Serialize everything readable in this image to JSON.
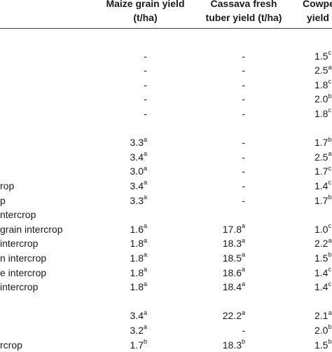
{
  "headers": {
    "maize": [
      "Maize grain yield",
      "(t/ha)"
    ],
    "cassava": [
      "Cassava fresh",
      "tuber yield (t/ha)"
    ],
    "cowpea": [
      "Cowpea",
      "yield ("
    ]
  },
  "rows": [
    {
      "label": "",
      "maize": "",
      "maize_sup": "",
      "cassava": "",
      "cassava_sup": "",
      "cowpea": "",
      "cowpea_sup": ""
    },
    {
      "label": "",
      "maize": "-",
      "maize_sup": "",
      "cassava": "-",
      "cassava_sup": "",
      "cowpea": "1.5",
      "cowpea_sup": "c"
    },
    {
      "label": "",
      "maize": "-",
      "maize_sup": "",
      "cassava": "-",
      "cassava_sup": "",
      "cowpea": "2.5",
      "cowpea_sup": "a"
    },
    {
      "label": "",
      "maize": "-",
      "maize_sup": "",
      "cassava": "-",
      "cassava_sup": "",
      "cowpea": "1.8",
      "cowpea_sup": "c"
    },
    {
      "label": "",
      "maize": "-",
      "maize_sup": "",
      "cassava": "-",
      "cassava_sup": "",
      "cowpea": "2.0",
      "cowpea_sup": "b"
    },
    {
      "label": "",
      "maize": "-",
      "maize_sup": "",
      "cassava": "-",
      "cassava_sup": "",
      "cowpea": "1.8",
      "cowpea_sup": "c"
    },
    {
      "label": "",
      "maize": "",
      "maize_sup": "",
      "cassava": "",
      "cassava_sup": "",
      "cowpea": "",
      "cowpea_sup": ""
    },
    {
      "label": "",
      "maize": "3.3",
      "maize_sup": "a",
      "cassava": "-",
      "cassava_sup": "",
      "cowpea": "1.7",
      "cowpea_sup": "b"
    },
    {
      "label": "",
      "maize": "3.4",
      "maize_sup": "a",
      "cassava": "-",
      "cassava_sup": "",
      "cowpea": "2.5",
      "cowpea_sup": "a"
    },
    {
      "label": "",
      "maize": "3.0",
      "maize_sup": "a",
      "cassava": "-",
      "cassava_sup": "",
      "cowpea": "1.7",
      "cowpea_sup": "c"
    },
    {
      "label": "rop",
      "maize": "3.4",
      "maize_sup": "a",
      "cassava": "-",
      "cassava_sup": "",
      "cowpea": "1.4",
      "cowpea_sup": "c"
    },
    {
      "label": "p",
      "maize": "3.3",
      "maize_sup": "a",
      "cassava": "-",
      "cassava_sup": "",
      "cowpea": "1.7",
      "cowpea_sup": "b"
    },
    {
      "label": "ntercrop",
      "maize": "",
      "maize_sup": "",
      "cassava": "",
      "cassava_sup": "",
      "cowpea": "",
      "cowpea_sup": ""
    },
    {
      "label": "grain intercrop",
      "maize": "1.6",
      "maize_sup": "a",
      "cassava": "17.8",
      "cassava_sup": "a",
      "cowpea": "1.0",
      "cowpea_sup": "c"
    },
    {
      "label": "intercrop",
      "maize": "1.8",
      "maize_sup": "a",
      "cassava": "18.3",
      "cassava_sup": "a",
      "cowpea": "2.2",
      "cowpea_sup": "a"
    },
    {
      "label": "n intercrop",
      "maize": "1.8",
      "maize_sup": "a",
      "cassava": "18.5",
      "cassava_sup": "a",
      "cowpea": "1.5",
      "cowpea_sup": "b"
    },
    {
      "label": "e intercrop",
      "maize": "1.8",
      "maize_sup": "a",
      "cassava": "18.6",
      "cassava_sup": "a",
      "cowpea": "1.4",
      "cowpea_sup": "c"
    },
    {
      "label": "intercrop",
      "maize": "1.8",
      "maize_sup": "a",
      "cassava": "18.4",
      "cassava_sup": "a",
      "cowpea": "1.4",
      "cowpea_sup": "c"
    },
    {
      "label": "",
      "maize": "",
      "maize_sup": "",
      "cassava": "",
      "cassava_sup": "",
      "cowpea": "",
      "cowpea_sup": ""
    },
    {
      "label": "",
      "maize": "3.4",
      "maize_sup": "a",
      "cassava": "22.2",
      "cassava_sup": "a",
      "cowpea": "2.1",
      "cowpea_sup": "a"
    },
    {
      "label": "",
      "maize": "3.2",
      "maize_sup": "a",
      "cassava": "-",
      "cassava_sup": "",
      "cowpea": "2.0",
      "cowpea_sup": "b"
    },
    {
      "label": "rcrop",
      "maize": "1.7",
      "maize_sup": "b",
      "cassava": "18.3",
      "cassava_sup": "b",
      "cowpea": "1.5",
      "cowpea_sup": "b"
    }
  ]
}
